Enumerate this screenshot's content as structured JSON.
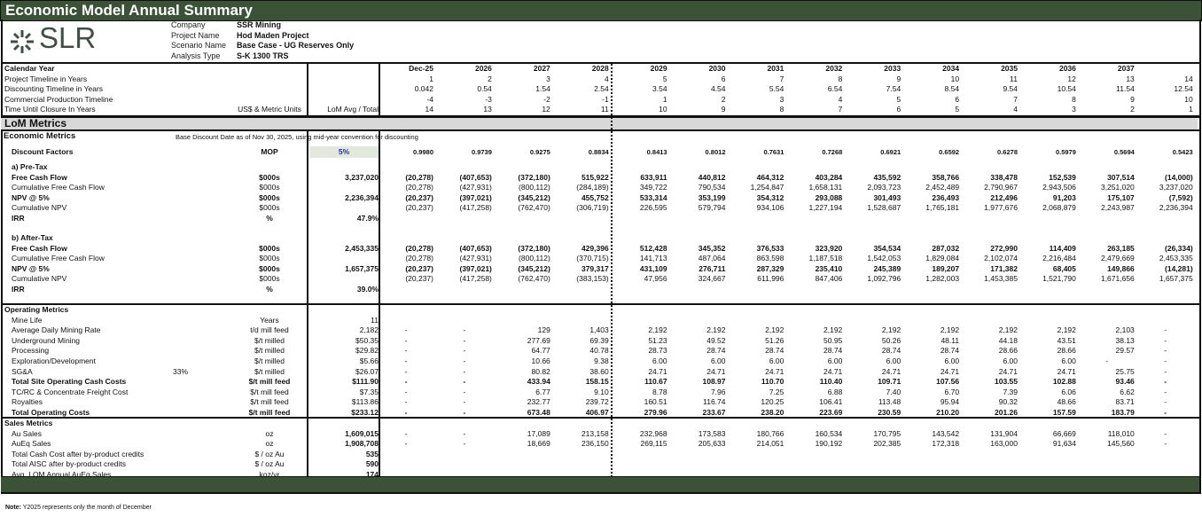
{
  "title": "Economic Model Annual Summary",
  "logo": {
    "text": "SLR",
    "icon": "slr-burst-icon"
  },
  "info": [
    {
      "label": "Company",
      "value": "SSR Mining"
    },
    {
      "label": "Project Name",
      "value": "Hod Maden Project"
    },
    {
      "label": "Scenario Name",
      "value": "Base Case - UG Reserves Only"
    },
    {
      "label": "Analysis Type",
      "value": "S-K 1300 TRS"
    }
  ],
  "colors": {
    "header_green": "#3b5237",
    "section_gray": "#d8d8d8",
    "discount_blue": "#1f2fb0",
    "mop_fill": "#e3e8dc"
  },
  "calendar": {
    "rows": [
      {
        "label": "Calendar Year",
        "bold": true,
        "values": [
          "Dec-25",
          "2026",
          "2027",
          "2028",
          "2029",
          "2030",
          "2031",
          "2032",
          "2033",
          "2034",
          "2035",
          "2036",
          "2037",
          ""
        ]
      },
      {
        "label": "Project Timeline in Years",
        "values": [
          "1",
          "2",
          "3",
          "4",
          "5",
          "6",
          "7",
          "8",
          "9",
          "10",
          "11",
          "12",
          "13",
          "14"
        ]
      },
      {
        "label": "Discounting Timeline in Years",
        "values": [
          "0.042",
          "0.54",
          "1.54",
          "2.54",
          "3.54",
          "4.54",
          "5.54",
          "6.54",
          "7.54",
          "8.54",
          "9.54",
          "10.54",
          "11.54",
          "12.54"
        ]
      },
      {
        "label": "Commercial Production Timeline",
        "values": [
          "-4",
          "-3",
          "-2",
          "-1",
          "1",
          "2",
          "3",
          "4",
          "5",
          "6",
          "7",
          "8",
          "9",
          "10"
        ]
      },
      {
        "label": "Time Until Closure In Years",
        "unit": "US$ & Metric Units",
        "lom": "LoM Avg / Total",
        "values": [
          "14",
          "13",
          "12",
          "11",
          "10",
          "9",
          "8",
          "7",
          "6",
          "5",
          "4",
          "3",
          "2",
          "1"
        ]
      }
    ]
  },
  "lom_metrics_label": "LoM Metrics",
  "economic": {
    "title": "Economic Metrics",
    "note": "Base Discount Date as of Nov 30, 2025, using mid-year convention for discounting",
    "discount": {
      "rows": [
        {
          "label": "Discount Factors",
          "bold": true,
          "unit": "MOP",
          "lom": "5%",
          "values": [
            "0.9980",
            "0.9739",
            "0.9275",
            "0.8834",
            "0.8413",
            "0.8012",
            "0.7631",
            "0.7268",
            "0.6921",
            "0.6592",
            "0.6278",
            "0.5979",
            "0.5694",
            "0.5423"
          ]
        }
      ]
    },
    "pretax": {
      "rows": [
        {
          "label": "a) Pre-Tax",
          "bold": true
        },
        {
          "label": "Free Cash Flow",
          "bold": true,
          "unit": "$000s",
          "lom": "3,237,020",
          "values": [
            "(20,278)",
            "(407,653)",
            "(372,180)",
            "515,922",
            "633,911",
            "440,812",
            "464,312",
            "403,284",
            "435,592",
            "358,766",
            "338,478",
            "152,539",
            "307,514",
            "(14,000)"
          ]
        },
        {
          "label": "Cumulative Free Cash Flow",
          "unit": "$000s",
          "values": [
            "(20,278)",
            "(427,931)",
            "(800,112)",
            "(284,189)",
            "349,722",
            "790,534",
            "1,254,847",
            "1,658,131",
            "2,093,723",
            "2,452,489",
            "2,790,967",
            "2,943,506",
            "3,251,020",
            "3,237,020"
          ]
        },
        {
          "label": "NPV @ 5%",
          "bold": true,
          "unit": "$000s",
          "lom": "2,236,394",
          "values": [
            "(20,237)",
            "(397,021)",
            "(345,212)",
            "455,752",
            "533,314",
            "353,199",
            "354,312",
            "293,088",
            "301,493",
            "236,493",
            "212,496",
            "91,203",
            "175,107",
            "(7,592)"
          ]
        },
        {
          "label": "Cumulative NPV",
          "unit": "$000s",
          "values": [
            "(20,237)",
            "(417,258)",
            "(762,470)",
            "(306,719)",
            "226,595",
            "579,794",
            "934,106",
            "1,227,194",
            "1,528,687",
            "1,765,181",
            "1,977,676",
            "2,068,879",
            "2,243,987",
            "2,236,394"
          ]
        },
        {
          "label": "IRR",
          "bold": true,
          "unit": "%",
          "lom": "47.9%"
        }
      ]
    },
    "aftertax": {
      "rows": [
        {
          "label": "b) After-Tax",
          "bold": true
        },
        {
          "label": "Free Cash Flow",
          "bold": true,
          "unit": "$000s",
          "lom": "2,453,335",
          "values": [
            "(20,278)",
            "(407,653)",
            "(372,180)",
            "429,396",
            "512,428",
            "345,352",
            "376,533",
            "323,920",
            "354,534",
            "287,032",
            "272,990",
            "114,409",
            "263,185",
            "(26,334)"
          ]
        },
        {
          "label": "Cumulative Free Cash Flow",
          "unit": "$000s",
          "values": [
            "(20,278)",
            "(427,931)",
            "(800,112)",
            "(370,715)",
            "141,713",
            "487,064",
            "863,598",
            "1,187,518",
            "1,542,053",
            "1,829,084",
            "2,102,074",
            "2,216,484",
            "2,479,669",
            "2,453,335"
          ]
        },
        {
          "label": "NPV @ 5%",
          "bold": true,
          "unit": "$000s",
          "lom": "1,657,375",
          "values": [
            "(20,237)",
            "(397,021)",
            "(345,212)",
            "379,317",
            "431,109",
            "276,711",
            "287,329",
            "235,410",
            "245,389",
            "189,207",
            "171,382",
            "68,405",
            "149,866",
            "(14,281)"
          ]
        },
        {
          "label": "Cumulative NPV",
          "unit": "$000s",
          "values": [
            "(20,237)",
            "(417,258)",
            "(762,470)",
            "(383,153)",
            "47,956",
            "324,667",
            "611,996",
            "847,406",
            "1,092,796",
            "1,282,003",
            "1,453,385",
            "1,521,790",
            "1,671,656",
            "1,657,375"
          ]
        },
        {
          "label": "IRR",
          "bold": true,
          "unit": "%",
          "lom": "39.0%"
        }
      ]
    }
  },
  "operating": {
    "rows": [
      {
        "label": "Operating Metrics",
        "bold": true,
        "header": true
      },
      {
        "label": "Mine Life",
        "unit": "Years",
        "lom": "11"
      },
      {
        "label": "Average Daily Mining Rate",
        "unit": "t/d mill feed",
        "lom": "2,182",
        "values": [
          "-",
          "-",
          "129",
          "1,403",
          "2,192",
          "2,192",
          "2,192",
          "2,192",
          "2,192",
          "2,192",
          "2,192",
          "2,192",
          "2,103",
          "-"
        ]
      },
      {
        "label": "Underground Mining",
        "unit": "$/t milled",
        "lom": "$50.35",
        "values": [
          "-",
          "-",
          "277.69",
          "69.39",
          "51.23",
          "49.52",
          "51.26",
          "50.95",
          "50.26",
          "48.11",
          "44.18",
          "43.51",
          "38.13",
          "-"
        ]
      },
      {
        "label": "Processing",
        "unit": "$/t milled",
        "lom": "$29.82",
        "values": [
          "-",
          "-",
          "64.77",
          "40.78",
          "28.73",
          "28.74",
          "28.74",
          "28.74",
          "28.74",
          "28.74",
          "28.66",
          "28.66",
          "29.57",
          "-"
        ]
      },
      {
        "label": "Exploration/Development",
        "unit": "$/t milled",
        "lom": "$5.66",
        "values": [
          "-",
          "-",
          "10.66",
          "9.38",
          "6.00",
          "6.00",
          "6.00",
          "6.00",
          "6.00",
          "6.00",
          "6.00",
          "6.00",
          "-",
          "-"
        ]
      },
      {
        "label": "SG&A",
        "pct": "33%",
        "unit": "$/t milled",
        "lom": "$26.07",
        "values": [
          "-",
          "-",
          "80.82",
          "38.60",
          "24.71",
          "24.71",
          "24.71",
          "24.71",
          "24.71",
          "24.71",
          "24.71",
          "24.71",
          "25.75",
          "-"
        ]
      },
      {
        "label": "Total Site Operating Cash Costs",
        "bold": true,
        "unit": "$/t mill feed",
        "lom": "$111.90",
        "values": [
          "-",
          "-",
          "433.94",
          "158.15",
          "110.67",
          "108.97",
          "110.70",
          "110.40",
          "109.71",
          "107.56",
          "103.55",
          "102.88",
          "93.46",
          "-"
        ]
      },
      {
        "label": "TC/RC & Concentrate Freight Cost",
        "unit": "$/t mill feed",
        "lom": "$7.35",
        "values": [
          "-",
          "-",
          "6.77",
          "9.10",
          "8.78",
          "7.96",
          "7.25",
          "6.88",
          "7.40",
          "6.70",
          "7.39",
          "6.06",
          "6.62",
          "-"
        ]
      },
      {
        "label": "Royalties",
        "unit": "$/t mill feed",
        "lom": "$113.86",
        "values": [
          "-",
          "-",
          "232.77",
          "239.72",
          "160.51",
          "116.74",
          "120.25",
          "106.41",
          "113.48",
          "95.94",
          "90.32",
          "48.66",
          "83.71",
          "-"
        ]
      },
      {
        "label": "Total Operating Costs",
        "bold": true,
        "unit": "$/t mill feed",
        "lom": "$233.12",
        "values": [
          "-",
          "-",
          "673.48",
          "406.97",
          "279.96",
          "233.67",
          "238.20",
          "223.69",
          "230.59",
          "210.20",
          "201.26",
          "157.59",
          "183.79",
          "-"
        ]
      }
    ]
  },
  "sales": {
    "rows": [
      {
        "label": "Sales Metrics",
        "bold": true,
        "header": true
      },
      {
        "label": "Au Sales",
        "unit": "oz",
        "lom": "1,609,015",
        "lom_bold": true,
        "values": [
          "-",
          "-",
          "17,089",
          "213,158",
          "232,968",
          "173,583",
          "180,766",
          "160,534",
          "170,795",
          "143,542",
          "131,904",
          "66,669",
          "118,010",
          "-"
        ]
      },
      {
        "label": "AuEq Sales",
        "unit": "oz",
        "lom": "1,908,708",
        "lom_bold": true,
        "values": [
          "-",
          "-",
          "18,669",
          "236,150",
          "269,115",
          "205,633",
          "214,051",
          "190,192",
          "202,385",
          "172,318",
          "163,000",
          "91,634",
          "145,560",
          "-"
        ]
      },
      {
        "label": "Total Cash Cost after by-product credits",
        "unit": "$ / oz Au",
        "lom": "535",
        "lom_bold": true
      },
      {
        "label": "Total AISC after by-product credits",
        "unit": "$ / oz Au",
        "lom": "590",
        "lom_bold": true
      },
      {
        "label": "Avg. LOM Annual AuEq Sales",
        "unit": "koz/yr",
        "lom": "174",
        "lom_bold": true
      }
    ]
  },
  "note": {
    "label": "Note:",
    "text": "Y2025 represents only the month of December"
  }
}
